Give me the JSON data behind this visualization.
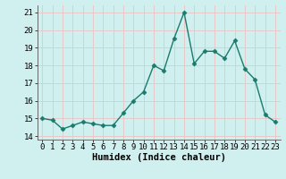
{
  "x": [
    0,
    1,
    2,
    3,
    4,
    5,
    6,
    7,
    8,
    9,
    10,
    11,
    12,
    13,
    14,
    15,
    16,
    17,
    18,
    19,
    20,
    21,
    22,
    23
  ],
  "y": [
    15.0,
    14.9,
    14.4,
    14.6,
    14.8,
    14.7,
    14.6,
    14.6,
    15.3,
    16.0,
    16.5,
    18.0,
    17.7,
    19.5,
    21.0,
    18.1,
    18.8,
    18.8,
    18.4,
    19.4,
    17.8,
    17.2,
    15.2,
    14.8
  ],
  "line_color": "#1a7a6e",
  "marker": "D",
  "marker_size": 2.5,
  "bg_color": "#cff0ee",
  "grid_color": "#e8c8c8",
  "xlabel": "Humidex (Indice chaleur)",
  "ylim": [
    13.8,
    21.4
  ],
  "xlim": [
    -0.5,
    23.5
  ],
  "yticks": [
    14,
    15,
    16,
    17,
    18,
    19,
    20,
    21
  ],
  "xticks": [
    0,
    1,
    2,
    3,
    4,
    5,
    6,
    7,
    8,
    9,
    10,
    11,
    12,
    13,
    14,
    15,
    16,
    17,
    18,
    19,
    20,
    21,
    22,
    23
  ],
  "xlabel_fontsize": 7.5,
  "tick_fontsize": 6.5,
  "line_width": 1.0
}
